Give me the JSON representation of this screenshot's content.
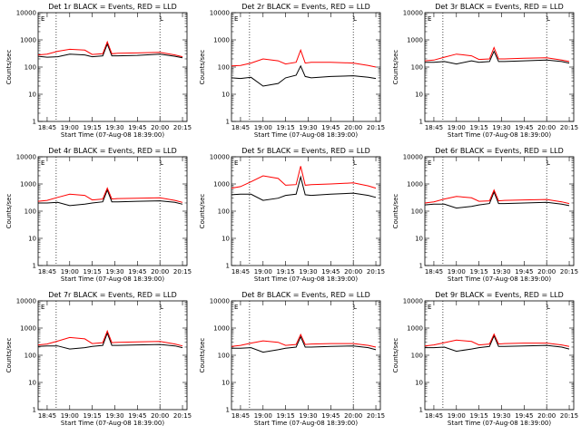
{
  "colors": {
    "events": "#000000",
    "lld": "#ff0000",
    "background": "#ffffff",
    "axes": "#000000"
  },
  "common": {
    "xlabel": "Start Time (07-Aug-08 18:39:00)",
    "ylabel": "Counts/sec",
    "x_tick_labels": [
      "18:45",
      "19:00",
      "19:15",
      "19:30",
      "19:45",
      "20:00",
      "20:15"
    ],
    "y_tick_labels": [
      "1",
      "10",
      "100",
      "1000",
      "10000"
    ],
    "corner_mark_left": "E",
    "corner_mark_right": "L"
  },
  "chart_data": [
    {
      "type": "line",
      "title": "Det 1r BLACK = Events, RED = LLD",
      "x_ticks": [
        "18:45",
        "19:00",
        "19:15",
        "19:30",
        "19:45",
        "20:00",
        "20:15"
      ],
      "y_scale": "log",
      "ylim": [
        1,
        10000
      ],
      "ylabel": "Counts/sec",
      "xlabel": "Start Time (07-Aug-08 18:39:00)",
      "dotted_vlines": [
        "18:51",
        "20:00"
      ],
      "x": [
        "18:39",
        "18:45",
        "18:52",
        "19:00",
        "19:10",
        "19:15",
        "19:22",
        "19:25",
        "19:28",
        "19:32",
        "19:45",
        "20:00",
        "20:10",
        "20:15"
      ],
      "series": [
        {
          "name": "Events",
          "color": "#000000",
          "values": [
            250,
            230,
            240,
            300,
            280,
            240,
            260,
            700,
            260,
            260,
            270,
            300,
            250,
            220
          ]
        },
        {
          "name": "LLD",
          "color": "#ff0000",
          "values": [
            280,
            300,
            380,
            450,
            420,
            290,
            310,
            850,
            310,
            320,
            330,
            350,
            280,
            240
          ]
        }
      ]
    },
    {
      "type": "line",
      "title": "Det 2r BLACK = Events, RED = LLD",
      "x_ticks": [
        "18:45",
        "19:00",
        "19:15",
        "19:30",
        "19:45",
        "20:00",
        "20:15"
      ],
      "y_scale": "log",
      "ylim": [
        1,
        10000
      ],
      "ylabel": "Counts/sec",
      "xlabel": "Start Time (07-Aug-08 18:39:00)",
      "dotted_vlines": [
        "18:51",
        "20:00"
      ],
      "x": [
        "18:39",
        "18:45",
        "18:52",
        "19:00",
        "19:10",
        "19:15",
        "19:22",
        "19:25",
        "19:28",
        "19:32",
        "19:45",
        "20:00",
        "20:10",
        "20:15"
      ],
      "series": [
        {
          "name": "Events",
          "color": "#000000",
          "values": [
            40,
            38,
            42,
            20,
            25,
            40,
            50,
            110,
            45,
            40,
            45,
            48,
            42,
            38
          ]
        },
        {
          "name": "LLD",
          "color": "#ff0000",
          "values": [
            110,
            115,
            140,
            200,
            170,
            130,
            150,
            420,
            140,
            150,
            150,
            140,
            115,
            100
          ]
        }
      ]
    },
    {
      "type": "line",
      "title": "Det 3r BLACK = Events, RED = LLD",
      "x_ticks": [
        "18:45",
        "19:00",
        "19:15",
        "19:30",
        "19:45",
        "20:00",
        "20:15"
      ],
      "y_scale": "log",
      "ylim": [
        1,
        10000
      ],
      "ylabel": "Counts/sec",
      "xlabel": "Start Time (07-Aug-08 18:39:00)",
      "dotted_vlines": [
        "18:51",
        "20:00"
      ],
      "x": [
        "18:39",
        "18:45",
        "18:52",
        "19:00",
        "19:10",
        "19:15",
        "19:22",
        "19:25",
        "19:28",
        "19:32",
        "19:45",
        "20:00",
        "20:10",
        "20:15"
      ],
      "series": [
        {
          "name": "Events",
          "color": "#000000",
          "values": [
            150,
            150,
            160,
            130,
            170,
            150,
            160,
            380,
            160,
            160,
            170,
            180,
            160,
            140
          ]
        },
        {
          "name": "LLD",
          "color": "#ff0000",
          "values": [
            170,
            180,
            230,
            300,
            260,
            190,
            200,
            520,
            200,
            200,
            210,
            220,
            180,
            160
          ]
        }
      ]
    },
    {
      "type": "line",
      "title": "Det 4r BLACK = Events, RED = LLD",
      "x_ticks": [
        "18:45",
        "19:00",
        "19:15",
        "19:30",
        "19:45",
        "20:00",
        "20:15"
      ],
      "y_scale": "log",
      "ylim": [
        1,
        10000
      ],
      "ylabel": "Counts/sec",
      "xlabel": "Start Time (07-Aug-08 18:39:00)",
      "dotted_vlines": [
        "18:51",
        "20:00"
      ],
      "x": [
        "18:39",
        "18:45",
        "18:52",
        "19:00",
        "19:10",
        "19:15",
        "19:22",
        "19:25",
        "19:28",
        "19:32",
        "19:45",
        "20:00",
        "20:10",
        "20:15"
      ],
      "series": [
        {
          "name": "Events",
          "color": "#000000",
          "values": [
            200,
            200,
            210,
            160,
            180,
            200,
            220,
            600,
            220,
            220,
            230,
            240,
            210,
            180
          ]
        },
        {
          "name": "LLD",
          "color": "#ff0000",
          "values": [
            230,
            250,
            320,
            420,
            380,
            260,
            280,
            700,
            280,
            290,
            300,
            310,
            250,
            210
          ]
        }
      ]
    },
    {
      "type": "line",
      "title": "Det 5r BLACK = Events, RED = LLD",
      "x_ticks": [
        "18:45",
        "19:00",
        "19:15",
        "19:30",
        "19:45",
        "20:00",
        "20:15"
      ],
      "y_scale": "log",
      "ylim": [
        1,
        10000
      ],
      "ylabel": "Counts/sec",
      "xlabel": "Start Time (07-Aug-08 18:39:00)",
      "dotted_vlines": [
        "18:51",
        "20:00"
      ],
      "x": [
        "18:39",
        "18:45",
        "18:52",
        "19:00",
        "19:10",
        "19:15",
        "19:22",
        "19:25",
        "19:28",
        "19:32",
        "19:45",
        "20:00",
        "20:10",
        "20:15"
      ],
      "series": [
        {
          "name": "Events",
          "color": "#000000",
          "values": [
            400,
            420,
            420,
            250,
            300,
            380,
            420,
            1800,
            400,
            380,
            420,
            460,
            380,
            320
          ]
        },
        {
          "name": "LLD",
          "color": "#ff0000",
          "values": [
            700,
            800,
            1200,
            2000,
            1600,
            900,
            950,
            4500,
            900,
            950,
            1000,
            1100,
            850,
            700
          ]
        }
      ]
    },
    {
      "type": "line",
      "title": "Det 6r BLACK = Events, RED = LLD",
      "x_ticks": [
        "18:45",
        "19:00",
        "19:15",
        "19:30",
        "19:45",
        "20:00",
        "20:15"
      ],
      "y_scale": "log",
      "ylim": [
        1,
        10000
      ],
      "ylabel": "Counts/sec",
      "xlabel": "Start Time (07-Aug-08 18:39:00)",
      "dotted_vlines": [
        "18:51",
        "20:00"
      ],
      "x": [
        "18:39",
        "18:45",
        "18:52",
        "19:00",
        "19:10",
        "19:15",
        "19:22",
        "19:25",
        "19:28",
        "19:32",
        "19:45",
        "20:00",
        "20:10",
        "20:15"
      ],
      "series": [
        {
          "name": "Events",
          "color": "#000000",
          "values": [
            170,
            180,
            180,
            130,
            150,
            170,
            190,
            500,
            190,
            190,
            200,
            210,
            180,
            160
          ]
        },
        {
          "name": "LLD",
          "color": "#ff0000",
          "values": [
            200,
            220,
            280,
            350,
            310,
            230,
            240,
            600,
            240,
            250,
            260,
            270,
            220,
            190
          ]
        }
      ]
    },
    {
      "type": "line",
      "title": "Det 7r BLACK = Events, RED = LLD",
      "x_ticks": [
        "18:45",
        "19:00",
        "19:15",
        "19:30",
        "19:45",
        "20:00",
        "20:15"
      ],
      "y_scale": "log",
      "ylim": [
        1,
        10000
      ],
      "ylabel": "Counts/sec",
      "xlabel": "Start Time (07-Aug-08 18:39:00)",
      "dotted_vlines": [
        "18:51",
        "20:00"
      ],
      "x": [
        "18:39",
        "18:45",
        "18:52",
        "19:00",
        "19:10",
        "19:15",
        "19:22",
        "19:25",
        "19:28",
        "19:32",
        "19:45",
        "20:00",
        "20:10",
        "20:15"
      ],
      "series": [
        {
          "name": "Events",
          "color": "#000000",
          "values": [
            210,
            220,
            220,
            170,
            190,
            210,
            230,
            650,
            230,
            230,
            240,
            250,
            220,
            190
          ]
        },
        {
          "name": "LLD",
          "color": "#ff0000",
          "values": [
            240,
            260,
            330,
            450,
            400,
            270,
            290,
            780,
            290,
            300,
            310,
            320,
            260,
            220
          ]
        }
      ]
    },
    {
      "type": "line",
      "title": "Det 8r BLACK = Events, RED = LLD",
      "x_ticks": [
        "18:45",
        "19:00",
        "19:15",
        "19:30",
        "19:45",
        "20:00",
        "20:15"
      ],
      "y_scale": "log",
      "ylim": [
        1,
        10000
      ],
      "ylabel": "Counts/sec",
      "xlabel": "Start Time (07-Aug-08 18:39:00)",
      "dotted_vlines": [
        "18:51",
        "20:00"
      ],
      "x": [
        "18:39",
        "18:45",
        "18:52",
        "19:00",
        "19:10",
        "19:15",
        "19:22",
        "19:25",
        "19:28",
        "19:32",
        "19:45",
        "20:00",
        "20:10",
        "20:15"
      ],
      "series": [
        {
          "name": "Events",
          "color": "#000000",
          "values": [
            180,
            180,
            190,
            130,
            160,
            180,
            200,
            480,
            200,
            200,
            210,
            220,
            190,
            160
          ]
        },
        {
          "name": "LLD",
          "color": "#ff0000",
          "values": [
            210,
            230,
            280,
            340,
            300,
            230,
            250,
            580,
            250,
            260,
            270,
            270,
            230,
            200
          ]
        }
      ]
    },
    {
      "type": "line",
      "title": "Det 9r BLACK = Events, RED = LLD",
      "x_ticks": [
        "18:45",
        "19:00",
        "19:15",
        "19:30",
        "19:45",
        "20:00",
        "20:15"
      ],
      "y_scale": "log",
      "ylim": [
        1,
        10000
      ],
      "ylabel": "Counts/sec",
      "xlabel": "Start Time (07-Aug-08 18:39:00)",
      "dotted_vlines": [
        "18:51",
        "20:00"
      ],
      "x": [
        "18:39",
        "18:45",
        "18:52",
        "19:00",
        "19:10",
        "19:15",
        "19:22",
        "19:25",
        "19:28",
        "19:32",
        "19:45",
        "20:00",
        "20:10",
        "20:15"
      ],
      "series": [
        {
          "name": "Events",
          "color": "#000000",
          "values": [
            190,
            190,
            200,
            140,
            170,
            190,
            210,
            520,
            210,
            210,
            220,
            230,
            200,
            170
          ]
        },
        {
          "name": "LLD",
          "color": "#ff0000",
          "values": [
            220,
            240,
            290,
            360,
            320,
            240,
            260,
            600,
            260,
            270,
            280,
            280,
            240,
            210
          ]
        }
      ]
    }
  ]
}
